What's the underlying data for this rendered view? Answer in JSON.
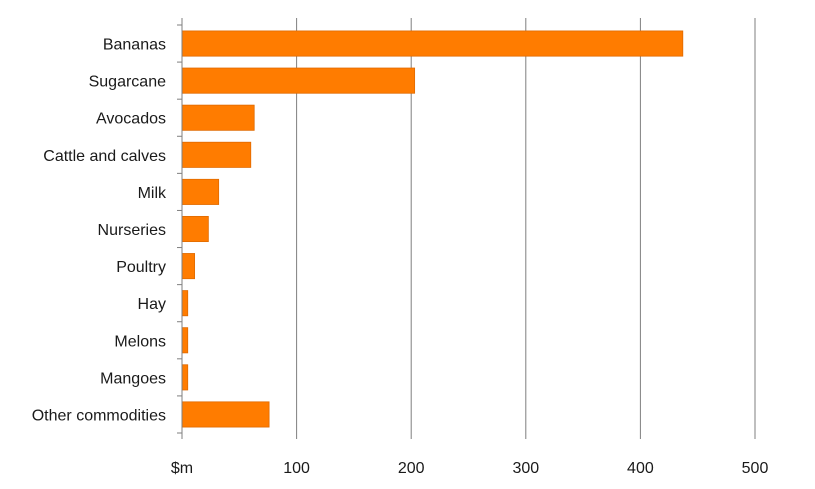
{
  "chart_data": {
    "type": "bar",
    "orientation": "horizontal",
    "categories": [
      "Bananas",
      "Sugarcane",
      "Avocados",
      "Cattle and calves",
      "Milk",
      "Nurseries",
      "Poultry",
      "Hay",
      "Melons",
      "Mangoes",
      "Other commodities"
    ],
    "values": [
      437,
      203,
      63,
      60,
      32,
      23,
      11,
      5,
      5,
      5,
      76
    ],
    "xlim": [
      0,
      500
    ],
    "xticks": [
      0,
      100,
      200,
      300,
      400,
      500
    ],
    "xtick_labels": [
      "$m",
      "100",
      "200",
      "300",
      "400",
      "500"
    ],
    "title": "",
    "xlabel": "",
    "ylabel": "",
    "grid": "vertical",
    "legend": "none",
    "bar_color": "#ff7c00"
  }
}
